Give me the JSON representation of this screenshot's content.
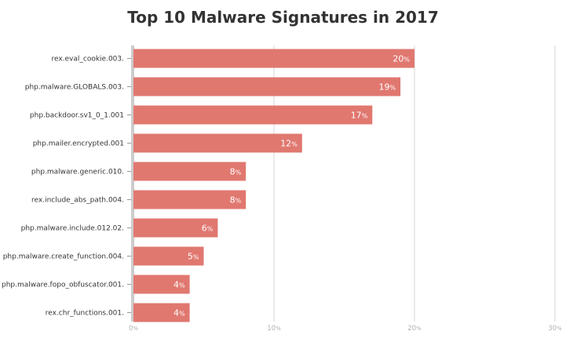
{
  "chart_data": {
    "type": "bar",
    "orientation": "horizontal",
    "title": "Top 10 Malware Signatures in 2017",
    "xlabel": "",
    "ylabel": "",
    "unit": "%",
    "categories": [
      "rex.eval_cookie.003.",
      "php.malware.GLOBALS.003.",
      "php.backdoor.sv1_0_1.001",
      "php.mailer.encrypted.001",
      "php.malware.generic.010.",
      "rex.include_abs_path.004.",
      "php.malware.include.012.02.",
      "php.malware.create_function.004.",
      "php.malware.fopo_obfuscator.001.",
      "rex.chr_functions.001."
    ],
    "values": [
      20,
      19,
      17,
      12,
      8,
      8,
      6,
      5,
      4,
      4
    ],
    "xlim": [
      0,
      30
    ],
    "xticks": [
      0,
      10,
      20,
      30
    ],
    "grid": true,
    "bar_color": "#e07870"
  }
}
